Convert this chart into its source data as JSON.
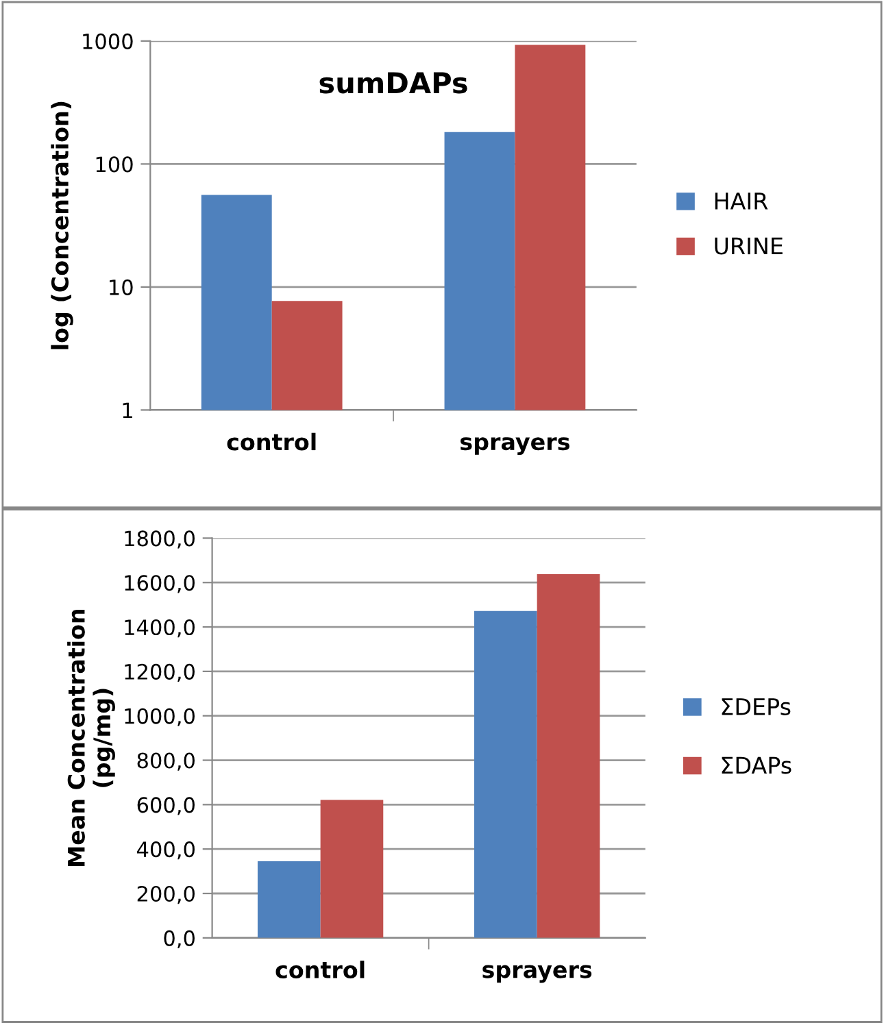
{
  "chart_data": [
    {
      "type": "bar",
      "title": "sumDAPs",
      "ylabel": "log (Concentration)",
      "categories": [
        "control",
        "sprayers"
      ],
      "log": "y",
      "ylim": [
        1,
        1000
      ],
      "yticks": [
        1,
        10,
        100,
        1000
      ],
      "grid": "y",
      "legend": "right",
      "series": [
        {
          "name": "HAIR",
          "color": "#4f81bd",
          "values": [
            56,
            182
          ]
        },
        {
          "name": "URINE",
          "color": "#c0504d",
          "values": [
            7.7,
            930
          ]
        }
      ]
    },
    {
      "type": "bar",
      "ylabel": "Mean Concentration\n(pg/mg)",
      "categories": [
        "control",
        "sprayers"
      ],
      "ylim": [
        0,
        1800
      ],
      "yticks": [
        {
          "value": 0,
          "label": "0,0"
        },
        {
          "value": 200,
          "label": "200,0"
        },
        {
          "value": 400,
          "label": "400,0"
        },
        {
          "value": 600,
          "label": "600,0"
        },
        {
          "value": 800,
          "label": "800,0"
        },
        {
          "value": 1000,
          "label": "1000,0"
        },
        {
          "value": 1200,
          "label": "1200,0"
        },
        {
          "value": 1400,
          "label": "1400,0"
        },
        {
          "value": 1600,
          "label": "1600,0"
        },
        {
          "value": 1800,
          "label": "1800,0"
        }
      ],
      "grid": "y",
      "legend": "right",
      "series": [
        {
          "name": "ΣDEPs",
          "color": "#4f81bd",
          "values": [
            345,
            1472
          ]
        },
        {
          "name": "ΣDAPs",
          "color": "#c0504d",
          "values": [
            621,
            1638
          ]
        }
      ]
    }
  ]
}
